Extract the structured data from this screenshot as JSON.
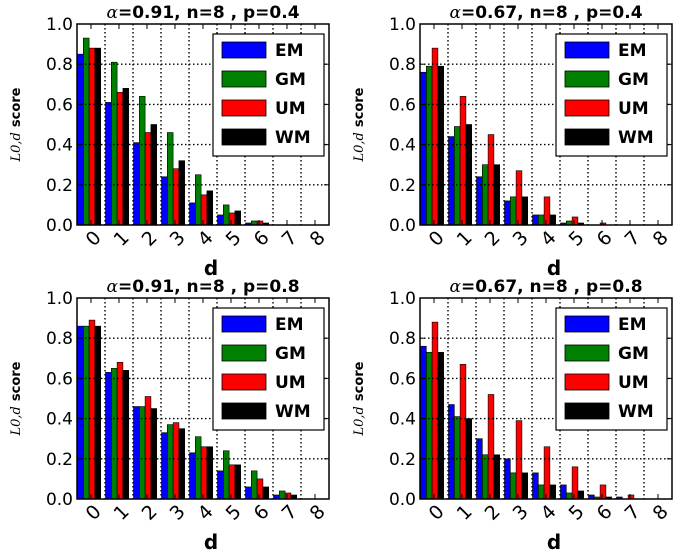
{
  "chart_data": [
    {
      "type": "bar",
      "title_prefix": "α",
      "title": "=0.91, n=8 , p=0.4",
      "xlabel": "d",
      "ylabel_math": "L0,d",
      "ylabel": "score",
      "categories": [
        "0",
        "1",
        "2",
        "3",
        "4",
        "5",
        "6",
        "7",
        "8"
      ],
      "yticks": [
        "0.0",
        "0.2",
        "0.4",
        "0.6",
        "0.8",
        "1.0"
      ],
      "ylim": [
        0,
        1.0
      ],
      "grid": true,
      "legend_position": "top-right",
      "series": [
        {
          "name": "EM",
          "color": "#0000ff",
          "values": [
            0.85,
            0.61,
            0.41,
            0.24,
            0.11,
            0.05,
            0.01,
            0.0,
            0.0
          ]
        },
        {
          "name": "GM",
          "color": "#008000",
          "values": [
            0.93,
            0.81,
            0.64,
            0.46,
            0.25,
            0.1,
            0.02,
            0.0,
            0.0
          ]
        },
        {
          "name": "UM",
          "color": "#ff0000",
          "values": [
            0.88,
            0.66,
            0.46,
            0.28,
            0.15,
            0.06,
            0.02,
            0.0,
            0.0
          ]
        },
        {
          "name": "WM",
          "color": "#000000",
          "values": [
            0.88,
            0.68,
            0.5,
            0.32,
            0.17,
            0.07,
            0.01,
            0.0,
            0.0
          ]
        }
      ]
    },
    {
      "type": "bar",
      "title_prefix": "α",
      "title": "=0.67, n=8 , p=0.4",
      "xlabel": "d",
      "ylabel_math": "L0,d",
      "ylabel": "score",
      "categories": [
        "0",
        "1",
        "2",
        "3",
        "4",
        "5",
        "6",
        "7",
        "8"
      ],
      "yticks": [
        "0.0",
        "0.2",
        "0.4",
        "0.6",
        "0.8",
        "1.0"
      ],
      "ylim": [
        0,
        1.0
      ],
      "grid": true,
      "legend_position": "top-right",
      "series": [
        {
          "name": "EM",
          "color": "#0000ff",
          "values": [
            0.76,
            0.44,
            0.24,
            0.12,
            0.05,
            0.01,
            0.0,
            0.0,
            0.0
          ]
        },
        {
          "name": "GM",
          "color": "#008000",
          "values": [
            0.79,
            0.49,
            0.3,
            0.14,
            0.05,
            0.02,
            0.0,
            0.0,
            0.0
          ]
        },
        {
          "name": "UM",
          "color": "#ff0000",
          "values": [
            0.88,
            0.64,
            0.45,
            0.27,
            0.14,
            0.04,
            0.01,
            0.0,
            0.0
          ]
        },
        {
          "name": "WM",
          "color": "#000000",
          "values": [
            0.79,
            0.5,
            0.3,
            0.14,
            0.05,
            0.01,
            0.0,
            0.0,
            0.0
          ]
        }
      ]
    },
    {
      "type": "bar",
      "title_prefix": "α",
      "title": "=0.91, n=8 , p=0.8",
      "xlabel": "d",
      "ylabel_math": "L0,d",
      "ylabel": "score",
      "categories": [
        "0",
        "1",
        "2",
        "3",
        "4",
        "5",
        "6",
        "7",
        "8"
      ],
      "yticks": [
        "0.0",
        "0.2",
        "0.4",
        "0.6",
        "0.8",
        "1.0"
      ],
      "ylim": [
        0,
        1.0
      ],
      "grid": true,
      "legend_position": "top-right",
      "series": [
        {
          "name": "EM",
          "color": "#0000ff",
          "values": [
            0.86,
            0.63,
            0.46,
            0.33,
            0.23,
            0.14,
            0.06,
            0.02,
            0.0
          ]
        },
        {
          "name": "GM",
          "color": "#008000",
          "values": [
            0.86,
            0.65,
            0.46,
            0.37,
            0.31,
            0.24,
            0.14,
            0.04,
            0.0
          ]
        },
        {
          "name": "UM",
          "color": "#ff0000",
          "values": [
            0.89,
            0.68,
            0.51,
            0.38,
            0.26,
            0.17,
            0.1,
            0.03,
            0.0
          ]
        },
        {
          "name": "WM",
          "color": "#000000",
          "values": [
            0.86,
            0.64,
            0.45,
            0.35,
            0.26,
            0.17,
            0.06,
            0.02,
            0.0
          ]
        }
      ]
    },
    {
      "type": "bar",
      "title_prefix": "α",
      "title": "=0.67, n=8 , p=0.8",
      "xlabel": "d",
      "ylabel_math": "L0,d",
      "ylabel": "score",
      "categories": [
        "0",
        "1",
        "2",
        "3",
        "4",
        "5",
        "6",
        "7",
        "8"
      ],
      "yticks": [
        "0.0",
        "0.2",
        "0.4",
        "0.6",
        "0.8",
        "1.0"
      ],
      "ylim": [
        0,
        1.0
      ],
      "grid": true,
      "legend_position": "top-right",
      "series": [
        {
          "name": "EM",
          "color": "#0000ff",
          "values": [
            0.76,
            0.47,
            0.3,
            0.2,
            0.13,
            0.07,
            0.02,
            0.01,
            0.0
          ]
        },
        {
          "name": "GM",
          "color": "#008000",
          "values": [
            0.73,
            0.41,
            0.22,
            0.13,
            0.07,
            0.03,
            0.01,
            0.0,
            0.0
          ]
        },
        {
          "name": "UM",
          "color": "#ff0000",
          "values": [
            0.88,
            0.67,
            0.52,
            0.39,
            0.26,
            0.16,
            0.07,
            0.02,
            0.0
          ]
        },
        {
          "name": "WM",
          "color": "#000000",
          "values": [
            0.73,
            0.4,
            0.22,
            0.13,
            0.07,
            0.04,
            0.01,
            0.0,
            0.0
          ]
        }
      ]
    }
  ]
}
